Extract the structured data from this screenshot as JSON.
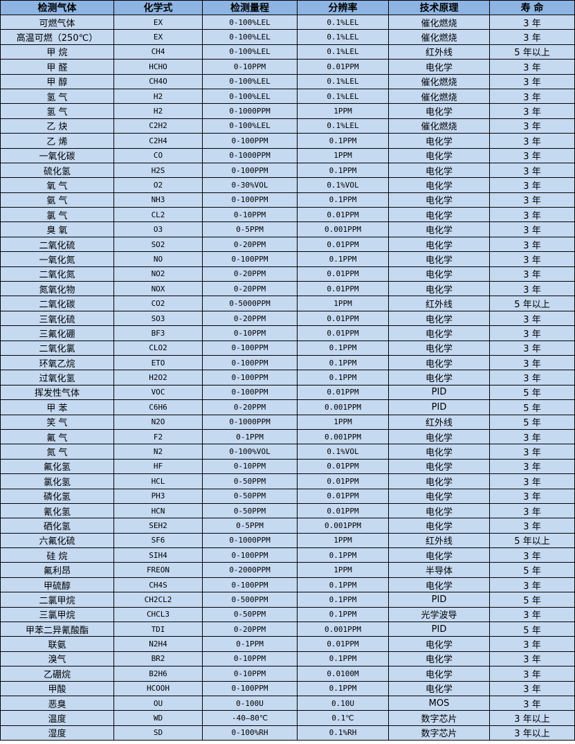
{
  "colors": {
    "header_bg": "#8db4e2",
    "body_bg": "#c5d9f1",
    "border": "#000000"
  },
  "headers": [
    "检测气体",
    "化学式",
    "检测量程",
    "分辨率",
    "技术原理",
    "寿 命"
  ],
  "rows": [
    [
      "可燃气体",
      "EX",
      "0-100%LEL",
      "0.1%LEL",
      "催化燃烧",
      "3 年"
    ],
    [
      "高温可燃（250℃）",
      "EX",
      "0-100%LEL",
      "0.1%LEL",
      "催化燃烧",
      "3 年"
    ],
    [
      "甲 烷",
      "CH4",
      "0-100%LEL",
      "0.1%LEL",
      "红外线",
      "5 年以上"
    ],
    [
      "甲 醛",
      "HCHO",
      "0-10PPM",
      "0.01PPM",
      "电化学",
      "3 年"
    ],
    [
      "甲 醇",
      "CH4O",
      "0-100%LEL",
      "0.1%LEL",
      "催化燃烧",
      "3 年"
    ],
    [
      "氢 气",
      "H2",
      "0-100%LEL",
      "0.1%LEL",
      "催化燃烧",
      "3 年"
    ],
    [
      "氢 气",
      "H2",
      "0-1000PPM",
      "1PPM",
      "电化学",
      "3 年"
    ],
    [
      "乙 炔",
      "C2H2",
      "0-100%LEL",
      "0.1%LEL",
      "催化燃烧",
      "3 年"
    ],
    [
      "乙 烯",
      "C2H4",
      "0-100PPM",
      "0.1PPM",
      "电化学",
      "3 年"
    ],
    [
      "一氧化碳",
      "CO",
      "0-1000PPM",
      "1PPM",
      "电化学",
      "3 年"
    ],
    [
      "硫化氢",
      "H2S",
      "0-100PPM",
      "0.1PPM",
      "电化学",
      "3 年"
    ],
    [
      "氧 气",
      "O2",
      "0-30%VOL",
      "0.1%VOL",
      "电化学",
      "3 年"
    ],
    [
      "氨 气",
      "NH3",
      "0-100PPM",
      "0.1PPM",
      "电化学",
      "3 年"
    ],
    [
      "氯 气",
      "CL2",
      "0-10PPM",
      "0.01PPM",
      "电化学",
      "3 年"
    ],
    [
      "臭 氧",
      "O3",
      "0-5PPM",
      "0.001PPM",
      "电化学",
      "3 年"
    ],
    [
      "二氧化硫",
      "SO2",
      "0-20PPM",
      "0.01PPM",
      "电化学",
      "3 年"
    ],
    [
      "一氧化氮",
      "NO",
      "0-100PPM",
      "0.1PPM",
      "电化学",
      "3 年"
    ],
    [
      "二氧化氮",
      "NO2",
      "0-20PPM",
      "0.01PPM",
      "电化学",
      "3 年"
    ],
    [
      "氮氧化物",
      "NOX",
      "0-20PPM",
      "0.01PPM",
      "电化学",
      "3 年"
    ],
    [
      "二氧化碳",
      "CO2",
      "0-5000PPM",
      "1PPM",
      "红外线",
      "5 年以上"
    ],
    [
      "三氧化硫",
      "SO3",
      "0-20PPM",
      "0.01PPM",
      "电化学",
      "3 年"
    ],
    [
      "三氟化硼",
      "BF3",
      "0-10PPM",
      "0.01PPM",
      "电化学",
      "3 年"
    ],
    [
      "二氧化氯",
      "CLO2",
      "0-100PPM",
      "0.1PPM",
      "电化学",
      "3 年"
    ],
    [
      "环氧乙烷",
      "ETO",
      "0-100PPM",
      "0.1PPM",
      "电化学",
      "3 年"
    ],
    [
      "过氧化氢",
      "H2O2",
      "0-100PPM",
      "0.1PPM",
      "电化学",
      "3 年"
    ],
    [
      "挥发性气体",
      "VOC",
      "0-100PPM",
      "0.01PPM",
      "PID",
      "5 年"
    ],
    [
      "甲 苯",
      "C6H6",
      "0-20PPM",
      "0.001PPM",
      "PID",
      "5 年"
    ],
    [
      "笑 气",
      "N2O",
      "0-1000PPM",
      "1PPM",
      "红外线",
      "5 年"
    ],
    [
      "氟 气",
      "F2",
      "0-1PPM",
      "0.001PPM",
      "电化学",
      "3 年"
    ],
    [
      "氮 气",
      "N2",
      "0-100%VOL",
      "0.1%VOL",
      "电化学",
      "3 年"
    ],
    [
      "氟化氢",
      "HF",
      "0-10PPM",
      "0.01PPM",
      "电化学",
      "3 年"
    ],
    [
      "氯化氢",
      "HCL",
      "0-50PPM",
      "0.01PPM",
      "电化学",
      "3 年"
    ],
    [
      "磷化氢",
      "PH3",
      "0-50PPM",
      "0.01PPM",
      "电化学",
      "3 年"
    ],
    [
      "氰化氢",
      "HCN",
      "0-50PPM",
      "0.01PPM",
      "电化学",
      "3 年"
    ],
    [
      "硒化氢",
      "SEH2",
      "0-5PPM",
      "0.001PPM",
      "电化学",
      "3 年"
    ],
    [
      "六氟化硫",
      "SF6",
      "0-1000PPM",
      "1PPM",
      "红外线",
      "5 年以上"
    ],
    [
      "硅 烷",
      "SIH4",
      "0-100PPM",
      "0.1PPM",
      "电化学",
      "3 年"
    ],
    [
      "氟利昂",
      "FREON",
      "0-2000PPM",
      "1PPM",
      "半导体",
      "5 年"
    ],
    [
      "甲硫醇",
      "CH4S",
      "0-100PPM",
      "0.1PPM",
      "电化学",
      "3 年"
    ],
    [
      "二氯甲烷",
      "CH2CL2",
      "0-500PPM",
      "0.1PPM",
      "PID",
      "5 年"
    ],
    [
      "三氯甲烷",
      "CHCL3",
      "0-50PPM",
      "0.1PPM",
      "光学波导",
      "3 年"
    ],
    [
      "甲苯二异氰酸酯",
      "TDI",
      "0-20PPM",
      "0.001PPM",
      "PID",
      "5 年"
    ],
    [
      "联氨",
      "N2H4",
      "0-1PPM",
      "0.01PPM",
      "电化学",
      "3 年"
    ],
    [
      "溴气",
      "BR2",
      "0-10PPM",
      "0.1PPM",
      "电化学",
      "3 年"
    ],
    [
      "乙硼烷",
      "B2H6",
      "0-10PPM",
      "0.0100M",
      "电化学",
      "3 年"
    ],
    [
      "甲酸",
      "HCOOH",
      "0-100PPM",
      "0.1PPM",
      "电化学",
      "3 年"
    ],
    [
      "恶臭",
      "OU",
      "0-100U",
      "0.10U",
      "MOS",
      "3 年"
    ],
    [
      "温度",
      "WD",
      "-40—80℃",
      "0.1℃",
      "数字芯片",
      "3 年以上"
    ],
    [
      "湿度",
      "SD",
      "0-100%RH",
      "0.1%RH",
      "数字芯片",
      "3 年以上"
    ]
  ]
}
